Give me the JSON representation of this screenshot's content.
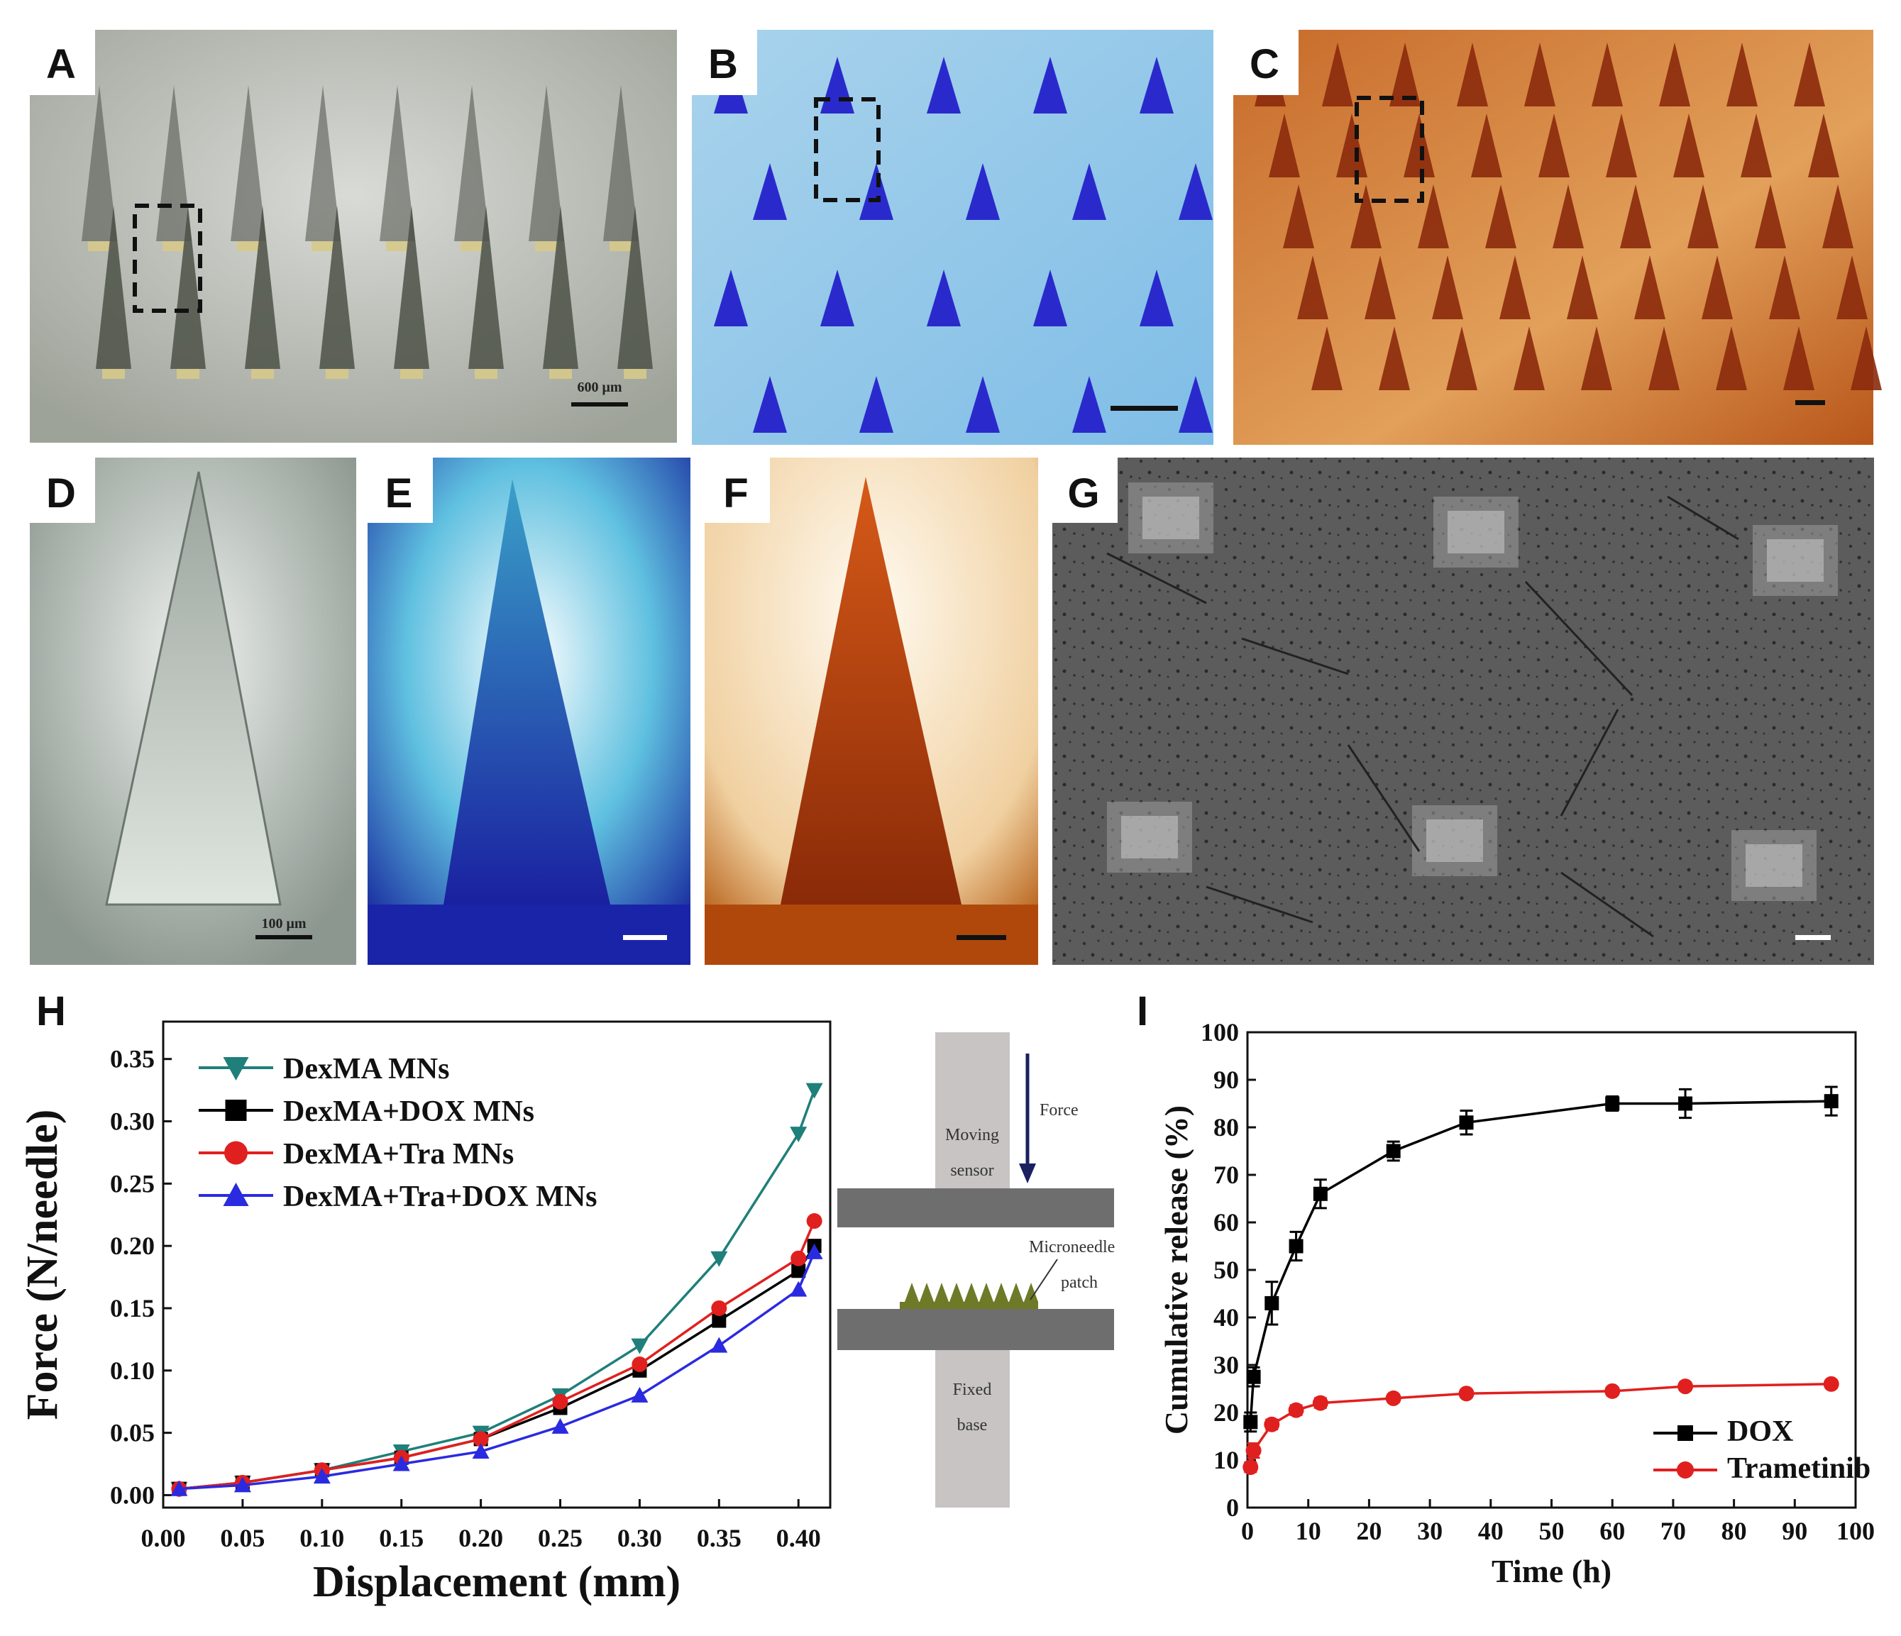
{
  "panels": {
    "A": {
      "label": "A",
      "scale": "600 μm"
    },
    "B": {
      "label": "B"
    },
    "C": {
      "label": "C"
    },
    "D": {
      "label": "D",
      "scale": "100 μm"
    },
    "E": {
      "label": "E"
    },
    "F": {
      "label": "F"
    },
    "G": {
      "label": "G"
    },
    "H": {
      "label": "H"
    },
    "I": {
      "label": "I"
    }
  },
  "diagram": {
    "moving": "Moving",
    "sensor": "sensor",
    "force": "Force",
    "microneedle": "Microneedle",
    "patch": "patch",
    "fixed": "Fixed",
    "base": "base"
  },
  "colors": {
    "dexma": "#1f7f7a",
    "dox": "#000000",
    "tra": "#e0201e",
    "tradox": "#2a2ae0"
  },
  "chart_data": [
    {
      "type": "line",
      "panel": "H",
      "xlabel": "Displacement (mm)",
      "ylabel": "Force (N/needle)",
      "xlim": [
        0,
        0.42
      ],
      "ylim": [
        -0.01,
        0.38
      ],
      "xticks": [
        "0.00",
        "0.05",
        "0.10",
        "0.15",
        "0.20",
        "0.25",
        "0.30",
        "0.35",
        "0.40"
      ],
      "yticks": [
        "0.00",
        "0.05",
        "0.10",
        "0.15",
        "0.20",
        "0.25",
        "0.30",
        "0.35"
      ],
      "legend": "top-left",
      "series": [
        {
          "name": "DexMA MNs",
          "marker": "triangle-down",
          "color": "#1f7f7a",
          "x": [
            0.01,
            0.05,
            0.1,
            0.15,
            0.2,
            0.25,
            0.3,
            0.35,
            0.4,
            0.41
          ],
          "y": [
            0.005,
            0.01,
            0.02,
            0.035,
            0.05,
            0.08,
            0.12,
            0.19,
            0.29,
            0.325
          ]
        },
        {
          "name": "DexMA+DOX MNs",
          "marker": "square",
          "color": "#000000",
          "x": [
            0.01,
            0.05,
            0.1,
            0.15,
            0.2,
            0.25,
            0.3,
            0.35,
            0.4,
            0.41
          ],
          "y": [
            0.005,
            0.01,
            0.02,
            0.03,
            0.045,
            0.07,
            0.1,
            0.14,
            0.18,
            0.2
          ]
        },
        {
          "name": "DexMA+Tra MNs",
          "marker": "circle",
          "color": "#e0201e",
          "x": [
            0.01,
            0.05,
            0.1,
            0.15,
            0.2,
            0.25,
            0.3,
            0.35,
            0.4,
            0.41
          ],
          "y": [
            0.005,
            0.01,
            0.02,
            0.03,
            0.045,
            0.075,
            0.105,
            0.15,
            0.19,
            0.22
          ]
        },
        {
          "name": "DexMA+Tra+DOX MNs",
          "marker": "triangle-up",
          "color": "#2a2ae0",
          "x": [
            0.01,
            0.05,
            0.1,
            0.15,
            0.2,
            0.25,
            0.3,
            0.35,
            0.4,
            0.41
          ],
          "y": [
            0.005,
            0.008,
            0.015,
            0.025,
            0.035,
            0.055,
            0.08,
            0.12,
            0.165,
            0.195
          ]
        }
      ]
    },
    {
      "type": "line",
      "panel": "I",
      "xlabel": "Time (h)",
      "ylabel": "Cumulative release (%)",
      "xlim": [
        0,
        100
      ],
      "ylim": [
        0,
        100
      ],
      "xticks": [
        "0",
        "10",
        "20",
        "30",
        "40",
        "50",
        "60",
        "70",
        "80",
        "90",
        "100"
      ],
      "yticks": [
        "0",
        "10",
        "20",
        "30",
        "40",
        "50",
        "60",
        "70",
        "80",
        "90",
        "100"
      ],
      "legend": "bottom-right",
      "series": [
        {
          "name": "DOX",
          "marker": "square",
          "color": "#000000",
          "x": [
            0.5,
            1,
            4,
            8,
            12,
            24,
            36,
            60,
            72,
            96
          ],
          "y": [
            18,
            27.5,
            43,
            55,
            66,
            75,
            81,
            85,
            85,
            85.5
          ],
          "err": [
            2,
            2,
            4.5,
            3,
            3,
            2,
            2.5,
            1.5,
            3,
            3
          ]
        },
        {
          "name": "Trametinib",
          "marker": "circle",
          "color": "#e0201e",
          "x": [
            0.5,
            1,
            4,
            8,
            12,
            24,
            36,
            60,
            72,
            96
          ],
          "y": [
            8.5,
            12,
            17.5,
            20.5,
            22,
            23,
            24,
            24.5,
            25.5,
            26
          ],
          "err": [
            1,
            1.5,
            1,
            1,
            1,
            0.8,
            0.8,
            0.8,
            0.8,
            0.8
          ]
        }
      ]
    }
  ]
}
